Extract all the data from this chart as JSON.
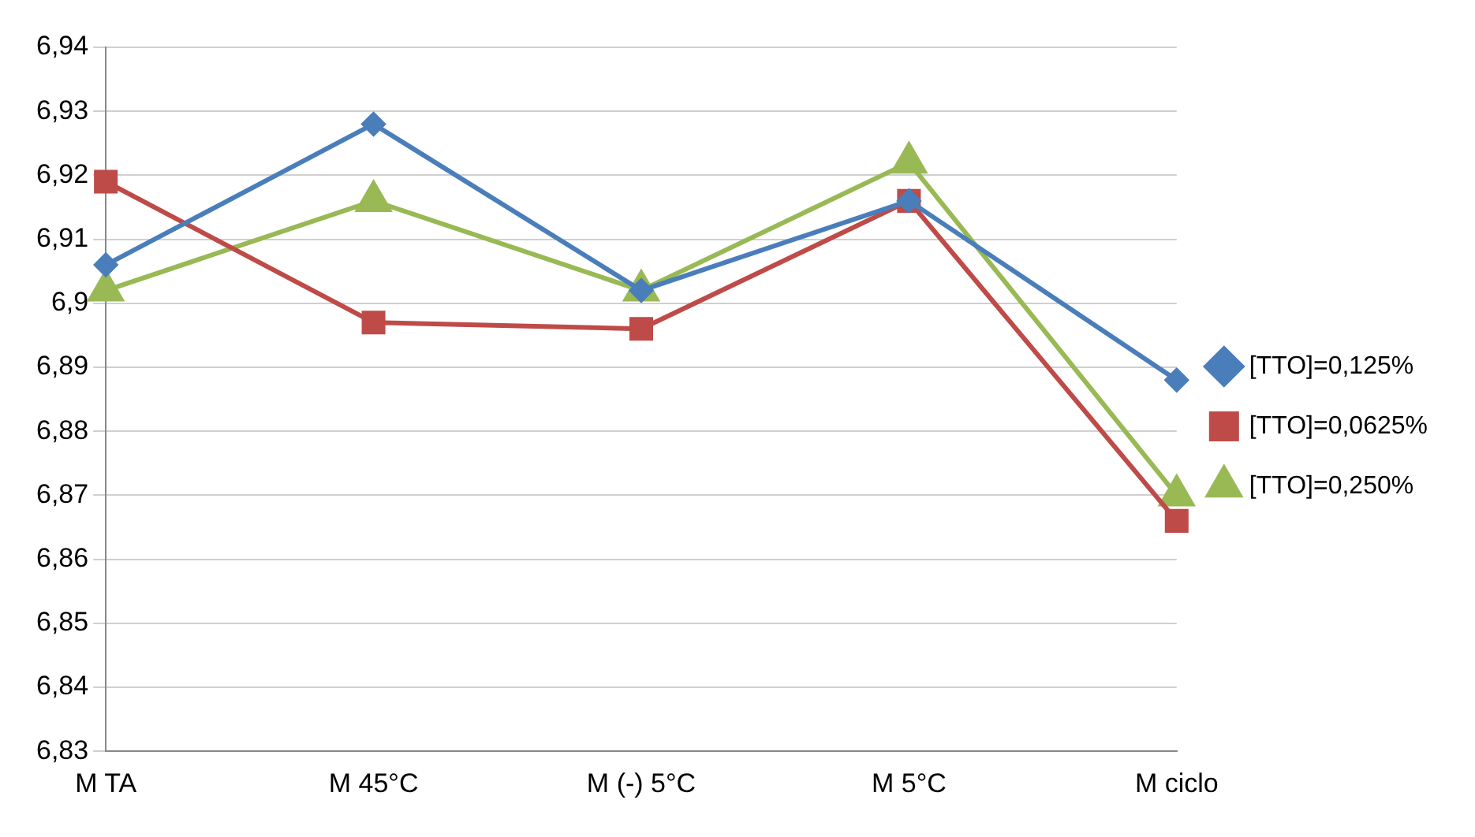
{
  "chart_data": {
    "type": "line",
    "categories": [
      "M TA",
      "M 45°C",
      "M (-) 5°C",
      "M 5°C",
      "M ciclo"
    ],
    "series": [
      {
        "name": "[TTO]=0,125%",
        "color": "#4a7ebb",
        "marker": "diamond",
        "values": [
          6.906,
          6.928,
          6.902,
          6.916,
          6.888
        ]
      },
      {
        "name": "[TTO]=0,0625%",
        "color": "#be4b48",
        "marker": "square",
        "values": [
          6.919,
          6.897,
          6.896,
          6.916,
          6.866
        ]
      },
      {
        "name": "[TTO]=0,250%",
        "color": "#98b954",
        "marker": "triangle",
        "values": [
          6.902,
          6.916,
          6.902,
          6.922,
          6.87
        ]
      }
    ],
    "ylim": [
      6.83,
      6.94
    ],
    "yticks": [
      {
        "value": 6.83,
        "label": "6,83"
      },
      {
        "value": 6.84,
        "label": "6,84"
      },
      {
        "value": 6.85,
        "label": "6,85"
      },
      {
        "value": 6.86,
        "label": "6,86"
      },
      {
        "value": 6.87,
        "label": "6,87"
      },
      {
        "value": 6.88,
        "label": "6,88"
      },
      {
        "value": 6.89,
        "label": "6,89"
      },
      {
        "value": 6.9,
        "label": "6,9"
      },
      {
        "value": 6.91,
        "label": "6,91"
      },
      {
        "value": 6.92,
        "label": "6,92"
      },
      {
        "value": 6.93,
        "label": "6,93"
      },
      {
        "value": 6.94,
        "label": "6,94"
      }
    ],
    "grid": "y",
    "legend": "right",
    "line_style": "solid"
  }
}
